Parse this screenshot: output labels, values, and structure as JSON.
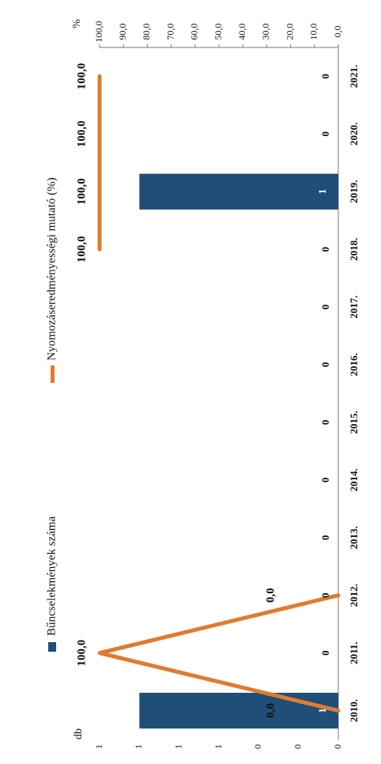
{
  "chart_data": {
    "type": "bar",
    "orientation": "rotated-90-clockwise",
    "categories": [
      "2010.",
      "2011.",
      "2012.",
      "2013.",
      "2014.",
      "2015.",
      "2016.",
      "2017.",
      "2018.",
      "2019.",
      "2020.",
      "2021."
    ],
    "left_axis": {
      "label": "db",
      "tick_labels": [
        "0",
        "0",
        "0",
        "1",
        "1",
        "1",
        "1"
      ],
      "ylim": [
        0,
        1.2
      ]
    },
    "right_axis": {
      "label": "%",
      "tick_labels": [
        "0,0",
        "10,0",
        "20,0",
        "30,0",
        "40,0",
        "50,0",
        "60,0",
        "70,0",
        "80,0",
        "90,0",
        "100,0"
      ],
      "ylim": [
        0,
        100
      ]
    },
    "series": [
      {
        "name": "Bűncselekmények száma",
        "kind": "bar",
        "color": "#1f4e79",
        "values": [
          1,
          0,
          0,
          0,
          0,
          0,
          0,
          0,
          0,
          1,
          0,
          0
        ],
        "labels": [
          "1",
          "0",
          "0",
          "0",
          "0",
          "0",
          "0",
          "0",
          "0",
          "1",
          "0",
          "0"
        ]
      },
      {
        "name": "Nyomozáseredményességi mutató (%)",
        "kind": "line",
        "color": "#e07b2e",
        "values": [
          0,
          100,
          0,
          null,
          null,
          null,
          null,
          null,
          100,
          100,
          100,
          100
        ],
        "labels": [
          "0,0",
          "100,0",
          "0,0",
          "",
          "",
          "",
          "",
          "",
          "100,0",
          "100,0",
          "100,0",
          "100,0"
        ]
      }
    ],
    "legend_position": "top"
  }
}
